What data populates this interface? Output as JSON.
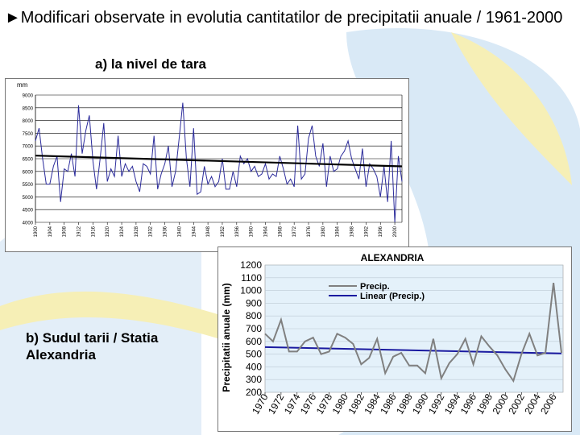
{
  "slide": {
    "title": "►Modificari observate in evolutia cantitatilor de precipitatii anuale / 1961-2000",
    "subtitle_a": "a) la nivel de tara",
    "subtitle_b": "b) Sudul tarii / Statia Alexandria",
    "colors": {
      "background_swirl": "#d6e8f5",
      "accent_yellow": "#f6efb6"
    }
  },
  "chart_data": [
    {
      "type": "line",
      "unit_label": "mm",
      "ylim": [
        4000,
        9000
      ],
      "y_ticks": [
        4000,
        4500,
        5000,
        5500,
        6000,
        6500,
        7000,
        7500,
        8000,
        8500,
        9000
      ],
      "x_ticks": [
        "1900",
        "1904",
        "1908",
        "1912",
        "1916",
        "1920",
        "1924",
        "1928",
        "1932",
        "1936",
        "1940",
        "1944",
        "1948",
        "1952",
        "1956",
        "1960",
        "1964",
        "1968",
        "1972",
        "1976",
        "1980",
        "1984",
        "1988",
        "1992",
        "1996",
        "2000"
      ],
      "xlim": [
        1900,
        2002
      ],
      "grid": true,
      "line_color": "#2b2b9b",
      "trend_color": "#000000",
      "trend": {
        "x": [
          1900,
          2002
        ],
        "y": [
          6620,
          6200
        ]
      },
      "series": [
        {
          "x": [
            1900,
            1901,
            1902,
            1903,
            1904,
            1905,
            1906,
            1907,
            1908,
            1909,
            1910,
            1911,
            1912,
            1913,
            1914,
            1915,
            1916,
            1917,
            1918,
            1919,
            1920,
            1921,
            1922,
            1923,
            1924,
            1925,
            1926,
            1927,
            1928,
            1929,
            1930,
            1931,
            1932,
            1933,
            1934,
            1935,
            1936,
            1937,
            1938,
            1939,
            1940,
            1941,
            1942,
            1943,
            1944,
            1945,
            1946,
            1947,
            1948,
            1949,
            1950,
            1951,
            1952,
            1953,
            1954,
            1955,
            1956,
            1957,
            1958,
            1959,
            1960,
            1961,
            1962,
            1963,
            1964,
            1965,
            1966,
            1967,
            1968,
            1969,
            1970,
            1971,
            1972,
            1973,
            1974,
            1975,
            1976,
            1977,
            1978,
            1979,
            1980,
            1981,
            1982,
            1983,
            1984,
            1985,
            1986,
            1987,
            1988,
            1989,
            1990,
            1991,
            1992,
            1993,
            1994,
            1995,
            1996,
            1997,
            1998,
            1999,
            2000,
            2001,
            2002
          ],
          "values": [
            7200,
            7700,
            6500,
            5500,
            5500,
            6200,
            6600,
            4800,
            6100,
            6000,
            6700,
            5800,
            8600,
            6700,
            7600,
            8200,
            6400,
            5300,
            6500,
            7900,
            5600,
            6100,
            5800,
            7400,
            5800,
            6300,
            6000,
            6200,
            5600,
            5200,
            6300,
            6200,
            5900,
            7400,
            5300,
            5900,
            6300,
            7000,
            5400,
            6000,
            7300,
            8700,
            6500,
            5400,
            7700,
            5100,
            5200,
            6200,
            5500,
            5800,
            5400,
            5600,
            6500,
            5300,
            5300,
            6000,
            5400,
            6600,
            6300,
            6500,
            6000,
            6200,
            5800,
            5900,
            6300,
            5700,
            5900,
            5800,
            6600,
            6100,
            5500,
            5700,
            5400,
            7800,
            5700,
            5900,
            7300,
            7800,
            6600,
            6200,
            7100,
            5400,
            6600,
            6000,
            6100,
            6600,
            6800,
            7200,
            6500,
            6100,
            5700,
            6900,
            5400,
            6300,
            6100,
            5800,
            5000,
            6200,
            4800,
            7200,
            5300,
            5600,
            6900
          ],
          "overrides": {
            "2000": 4000,
            "2001": 6600,
            "2002": 5600
          }
        }
      ]
    },
    {
      "type": "line",
      "title": "ALEXANDRIA",
      "ylabel": "Precipitatii anuale (mm)",
      "ylim": [
        200,
        1200
      ],
      "y_ticks": [
        200,
        300,
        400,
        500,
        600,
        700,
        800,
        900,
        1000,
        1100,
        1200
      ],
      "x_ticks": [
        "1970",
        "1972",
        "1974",
        "1976",
        "1978",
        "1980",
        "1982",
        "1984",
        "1986",
        "1988",
        "1990",
        "1992",
        "1994",
        "1996",
        "1998",
        "2000",
        "2002",
        "2004",
        "2006"
      ],
      "xlim": [
        1970,
        2006
      ],
      "grid": true,
      "legend": {
        "position": "top-center",
        "entries": [
          "Precip.",
          "Linear (Precip.)"
        ]
      },
      "series": [
        {
          "name": "Precip.",
          "color": "#808080",
          "x": [
            1970,
            1971,
            1972,
            1973,
            1974,
            1975,
            1976,
            1977,
            1978,
            1979,
            1980,
            1981,
            1982,
            1983,
            1984,
            1985,
            1986,
            1987,
            1988,
            1989,
            1990,
            1991,
            1992,
            1993,
            1994,
            1995,
            1996,
            1997,
            1998,
            1999,
            2000,
            2001,
            2002,
            2003,
            2004,
            2005,
            2006,
            2007
          ],
          "values": [
            660,
            600,
            770,
            520,
            520,
            600,
            630,
            500,
            520,
            660,
            630,
            580,
            420,
            470,
            620,
            350,
            480,
            510,
            410,
            410,
            350,
            620,
            310,
            430,
            500,
            620,
            420,
            640,
            560,
            490,
            380,
            290,
            500,
            660,
            490,
            510,
            1060,
            510
          ]
        },
        {
          "name": "Linear (Precip.)",
          "color": "#1a1aa0",
          "x": [
            1970,
            2007
          ],
          "values": [
            555,
            505
          ]
        }
      ]
    }
  ]
}
